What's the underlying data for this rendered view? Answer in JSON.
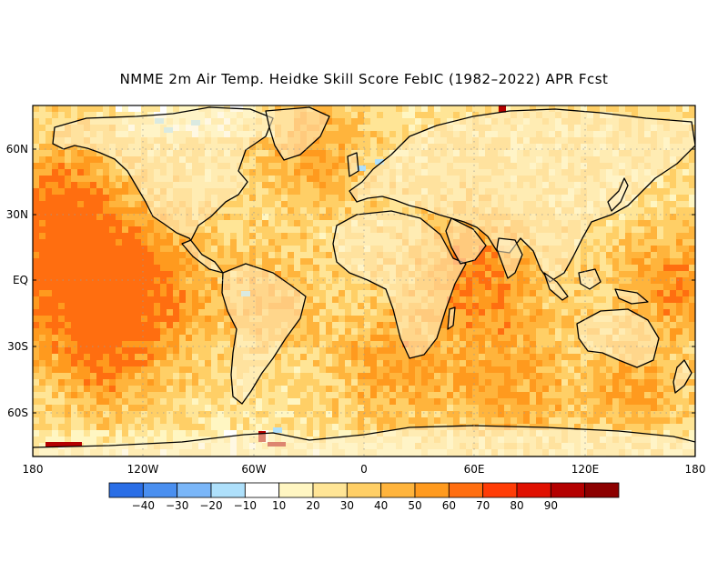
{
  "title": "NMME 2m Air Temp. Heidke Skill Score FebIC (1982–2022) APR Fcst",
  "lat_labels": [
    "60N",
    "30N",
    "EQ",
    "30S",
    "60S"
  ],
  "lon_labels": [
    "180",
    "120W",
    "60W",
    "0",
    "60E",
    "120E",
    "180"
  ],
  "colorbar": {
    "labels": [
      "−40",
      "−30",
      "−20",
      "−10",
      "10",
      "20",
      "30",
      "40",
      "50",
      "60",
      "70",
      "80",
      "90"
    ],
    "colors": [
      "#2a6ee6",
      "#4a8ff0",
      "#7ab6f8",
      "#aee0fb",
      "#ffffff",
      "#fff6c2",
      "#ffe596",
      "#ffcf66",
      "#ffb43c",
      "#ff9a1e",
      "#ff6e10",
      "#ff3c06",
      "#e01000",
      "#b40000",
      "#8c0000"
    ]
  },
  "map": {
    "region": "global",
    "projection": "equirectangular",
    "lon_range": [
      -180,
      180
    ],
    "lat_range": [
      -80,
      80
    ]
  }
}
